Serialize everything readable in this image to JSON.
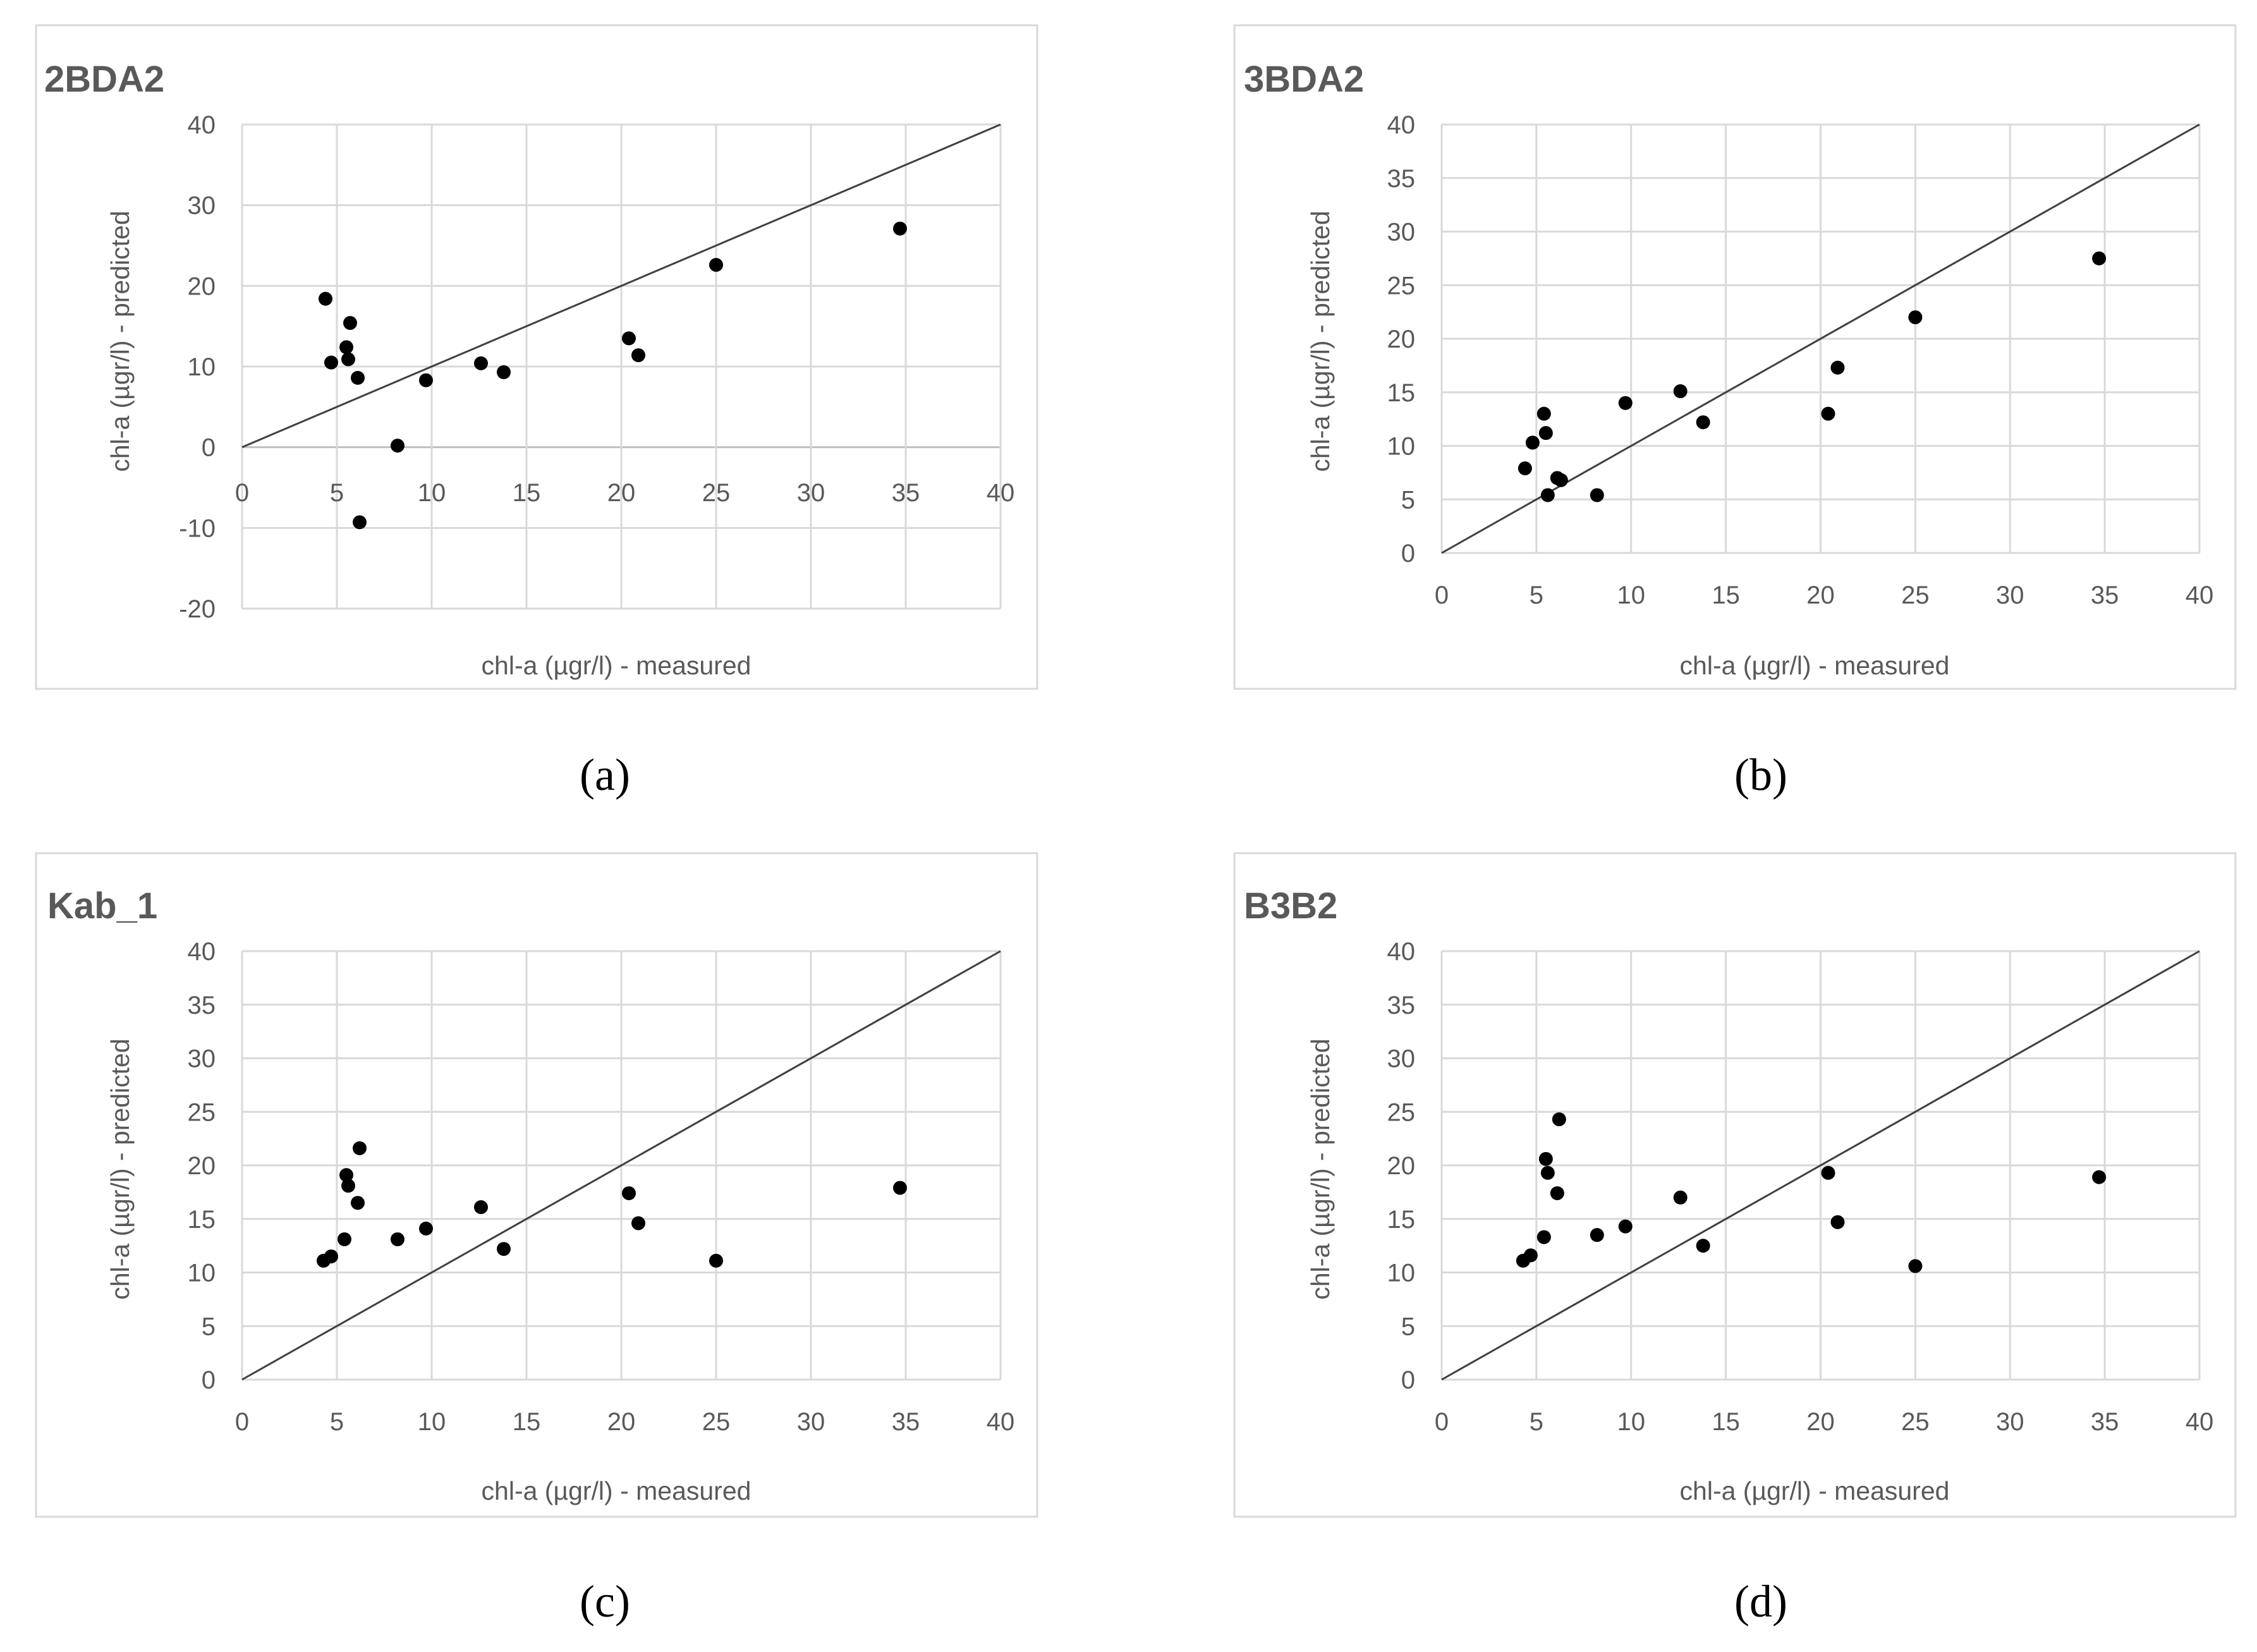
{
  "chart_data": [
    {
      "type": "scatter",
      "title": "2BDA2",
      "xlabel": "chl-a (µgr/l) - measured",
      "ylabel": "chl-a (µgr/l) - predicted",
      "xlim": [
        0,
        40
      ],
      "ylim": [
        -20,
        40
      ],
      "xticks": [
        0,
        5,
        10,
        15,
        20,
        25,
        30,
        35,
        40
      ],
      "yticks": [
        -20,
        -10,
        0,
        10,
        20,
        30,
        40
      ],
      "reference_line": "1:1",
      "x": [
        4.4,
        4.7,
        5.5,
        5.6,
        5.7,
        6.1,
        6.2,
        8.2,
        9.7,
        12.6,
        13.8,
        20.4,
        20.9,
        25.0,
        34.7
      ],
      "y": [
        18.4,
        10.5,
        12.4,
        10.9,
        15.4,
        8.6,
        -9.3,
        0.2,
        8.3,
        10.4,
        9.3,
        13.5,
        11.4,
        22.6,
        27.1
      ],
      "caption": "(a)"
    },
    {
      "type": "scatter",
      "title": "3BDA2",
      "xlabel": "chl-a (µgr/l) - measured",
      "ylabel": "chl-a (µgr/l) - predicted",
      "xlim": [
        0,
        40
      ],
      "ylim": [
        0,
        40
      ],
      "xticks": [
        0,
        5,
        10,
        15,
        20,
        25,
        30,
        35,
        40
      ],
      "yticks": [
        0,
        5,
        10,
        15,
        20,
        25,
        30,
        35,
        40
      ],
      "reference_line": "1:1",
      "x": [
        4.4,
        4.8,
        5.4,
        5.5,
        5.6,
        6.1,
        6.3,
        8.2,
        9.7,
        12.6,
        13.8,
        20.4,
        20.9,
        25.0,
        34.7
      ],
      "y": [
        7.9,
        10.3,
        13.0,
        11.2,
        5.4,
        7.0,
        6.8,
        5.4,
        14.0,
        15.1,
        12.2,
        13.0,
        17.3,
        22.0,
        27.5
      ],
      "caption": "(b)"
    },
    {
      "type": "scatter",
      "title": "Kab_1",
      "xlabel": "chl-a (µgr/l) - measured",
      "ylabel": "chl-a (µgr/l) - predicted",
      "xlim": [
        0,
        40
      ],
      "ylim": [
        0,
        40
      ],
      "xticks": [
        0,
        5,
        10,
        15,
        20,
        25,
        30,
        35,
        40
      ],
      "yticks": [
        0,
        5,
        10,
        15,
        20,
        25,
        30,
        35,
        40
      ],
      "reference_line": "1:1",
      "x": [
        4.3,
        4.7,
        5.4,
        5.5,
        5.6,
        6.1,
        6.2,
        8.2,
        9.7,
        12.6,
        13.8,
        20.4,
        20.9,
        25.0,
        34.7
      ],
      "y": [
        11.1,
        11.5,
        13.1,
        19.1,
        18.1,
        16.5,
        21.6,
        13.1,
        14.1,
        16.1,
        12.2,
        17.4,
        14.6,
        11.1,
        17.9
      ],
      "caption": "(c)"
    },
    {
      "type": "scatter",
      "title": "B3B2",
      "xlabel": "chl-a (µgr/l) - measured",
      "ylabel": "chl-a (µgr/l) - predicted",
      "xlim": [
        0,
        40
      ],
      "ylim": [
        0,
        40
      ],
      "xticks": [
        0,
        5,
        10,
        15,
        20,
        25,
        30,
        35,
        40
      ],
      "yticks": [
        0,
        5,
        10,
        15,
        20,
        25,
        30,
        35,
        40
      ],
      "reference_line": "1:1",
      "x": [
        4.3,
        4.7,
        5.4,
        5.5,
        5.6,
        6.1,
        6.2,
        8.2,
        9.7,
        12.6,
        13.8,
        20.4,
        20.9,
        25.0,
        34.7
      ],
      "y": [
        11.1,
        11.6,
        13.3,
        20.6,
        19.3,
        17.4,
        24.3,
        13.5,
        14.3,
        17.0,
        12.5,
        19.3,
        14.7,
        10.6,
        18.9
      ],
      "caption": "(d)"
    }
  ]
}
